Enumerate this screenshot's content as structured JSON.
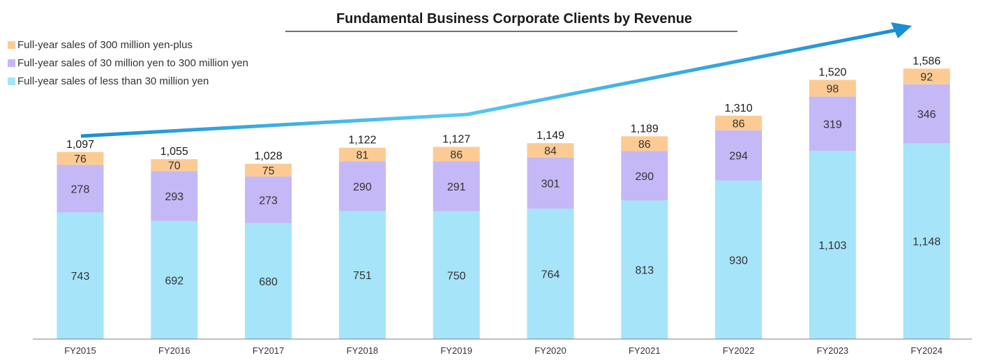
{
  "chart_data": {
    "type": "bar",
    "stacked": true,
    "title": "Fundamental Business Corporate Clients by Revenue",
    "categories": [
      "FY2015",
      "FY2016",
      "FY2017",
      "FY2018",
      "FY2019",
      "FY2020",
      "FY2021",
      "FY2022",
      "FY2023",
      "FY2024"
    ],
    "series": [
      {
        "name": "Full-year sales of less than 30 million yen",
        "color": "#a6e4fa",
        "values": [
          743,
          692,
          680,
          751,
          750,
          764,
          813,
          930,
          1103,
          1148
        ],
        "labels": [
          "743",
          "692",
          "680",
          "751",
          "750",
          "764",
          "813",
          "930",
          "1,103",
          "1,148"
        ]
      },
      {
        "name": "Full-year sales of 30 million yen to 300 million yen",
        "color": "#c4b8f7",
        "values": [
          278,
          293,
          273,
          290,
          291,
          301,
          290,
          294,
          319,
          346
        ],
        "labels": [
          "278",
          "293",
          "273",
          "290",
          "291",
          "301",
          "290",
          "294",
          "319",
          "346"
        ]
      },
      {
        "name": "Full-year sales of 300 million yen-plus",
        "color": "#fccb94",
        "values": [
          76,
          70,
          75,
          81,
          86,
          84,
          86,
          86,
          98,
          92
        ],
        "labels": [
          "76",
          "70",
          "75",
          "81",
          "86",
          "84",
          "86",
          "86",
          "98",
          "92"
        ]
      }
    ],
    "totals": [
      1097,
      1055,
      1028,
      1122,
      1127,
      1149,
      1189,
      1310,
      1520,
      1586
    ],
    "total_labels": [
      "1,097",
      "1,055",
      "1,028",
      "1,122",
      "1,127",
      "1,149",
      "1,189",
      "1,310",
      "1,520",
      "1,586"
    ],
    "legend_order": [
      "Full-year sales of 300 million yen-plus",
      "Full-year sales of 30 million yen to 300 million yen",
      "Full-year sales of less than 30 million yen"
    ],
    "legend_position": "top-left",
    "ylim": [
      0,
      1800
    ],
    "grid": false,
    "trend_arrow": {
      "colors": [
        "#1a8fd1",
        "#5cc8f2",
        "#1a8fd1"
      ]
    }
  }
}
